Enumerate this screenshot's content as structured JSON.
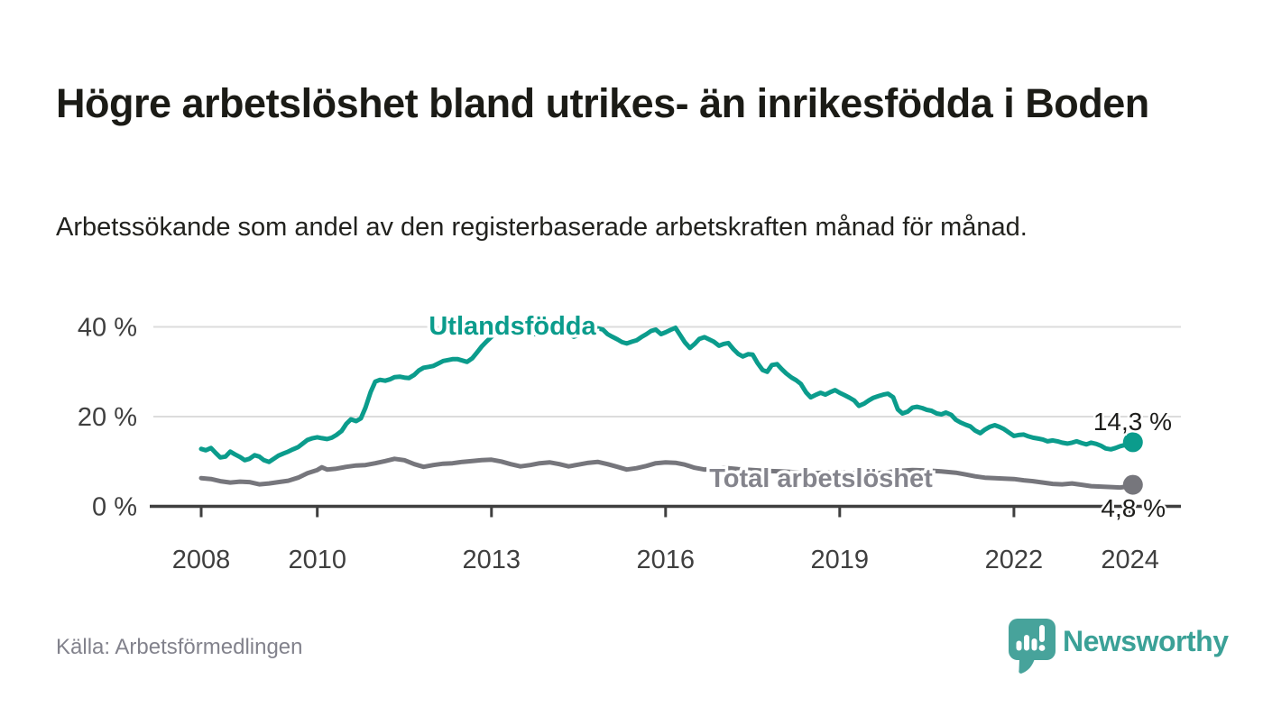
{
  "header": {
    "title": "Högre arbetslöshet bland utrikes- än inrikesfödda i Boden",
    "subtitle": "Arbetssökande som andel av den registerbaserade arbetskraften månad för månad."
  },
  "footer": {
    "source": "Källa: Arbetsförmedlingen",
    "brand": "Newsworthy"
  },
  "colors": {
    "accent_teal": "#0b9c8c",
    "total_gray": "#76767c",
    "total_label_gray": "#84848c",
    "axis_dark": "#3f3f3f",
    "gridline": "#dcdcdc",
    "value_label": "#1d1d1b",
    "brand_teal": "#3ba197",
    "white": "#ffffff"
  },
  "chart_data": {
    "type": "line",
    "title": "Arbetssökande som andel av den registerbaserade arbetskraften månad för månad",
    "unit": "%",
    "grid": true,
    "x_axis": {
      "range": [
        2007.15,
        2024.9
      ],
      "ticks": [
        2008,
        2010,
        2013,
        2016,
        2019,
        2022,
        2024
      ],
      "tick_labels": [
        "2008",
        "2010",
        "2013",
        "2016",
        "2019",
        "2022",
        "2024"
      ]
    },
    "y_axis": {
      "range": [
        0,
        42
      ],
      "ticks": [
        0,
        20,
        40
      ],
      "tick_labels": [
        "0 %",
        "20 %",
        "40 %"
      ]
    },
    "series": [
      {
        "name": "Total arbetslöshet",
        "color_key": "total_gray",
        "label_color_key": "total_label_gray",
        "end_value": 4.8,
        "end_label": "4,8 %",
        "points": [
          [
            2008.0,
            6.3
          ],
          [
            2008.17,
            6.1
          ],
          [
            2008.33,
            5.6
          ],
          [
            2008.5,
            5.3
          ],
          [
            2008.67,
            5.5
          ],
          [
            2008.83,
            5.4
          ],
          [
            2009.0,
            4.9
          ],
          [
            2009.17,
            5.1
          ],
          [
            2009.33,
            5.4
          ],
          [
            2009.5,
            5.7
          ],
          [
            2009.67,
            6.4
          ],
          [
            2009.83,
            7.4
          ],
          [
            2010.0,
            8.1
          ],
          [
            2010.08,
            8.7
          ],
          [
            2010.17,
            8.2
          ],
          [
            2010.33,
            8.4
          ],
          [
            2010.5,
            8.8
          ],
          [
            2010.67,
            9.1
          ],
          [
            2010.83,
            9.2
          ],
          [
            2011.0,
            9.6
          ],
          [
            2011.17,
            10.1
          ],
          [
            2011.33,
            10.6
          ],
          [
            2011.5,
            10.3
          ],
          [
            2011.67,
            9.4
          ],
          [
            2011.83,
            8.8
          ],
          [
            2012.0,
            9.2
          ],
          [
            2012.17,
            9.5
          ],
          [
            2012.33,
            9.6
          ],
          [
            2012.5,
            9.9
          ],
          [
            2012.67,
            10.1
          ],
          [
            2012.83,
            10.3
          ],
          [
            2013.0,
            10.4
          ],
          [
            2013.17,
            10.0
          ],
          [
            2013.33,
            9.4
          ],
          [
            2013.5,
            8.9
          ],
          [
            2013.67,
            9.2
          ],
          [
            2013.83,
            9.6
          ],
          [
            2014.0,
            9.8
          ],
          [
            2014.17,
            9.4
          ],
          [
            2014.33,
            8.9
          ],
          [
            2014.5,
            9.3
          ],
          [
            2014.67,
            9.7
          ],
          [
            2014.83,
            9.9
          ],
          [
            2015.0,
            9.4
          ],
          [
            2015.17,
            8.8
          ],
          [
            2015.33,
            8.2
          ],
          [
            2015.5,
            8.5
          ],
          [
            2015.67,
            9.0
          ],
          [
            2015.83,
            9.6
          ],
          [
            2016.0,
            9.8
          ],
          [
            2016.17,
            9.7
          ],
          [
            2016.33,
            9.3
          ],
          [
            2016.5,
            8.6
          ],
          [
            2016.67,
            8.2
          ],
          [
            2016.83,
            8.4
          ],
          [
            2017.0,
            8.6
          ],
          [
            2017.25,
            8.3
          ],
          [
            2017.5,
            8.1
          ],
          [
            2017.75,
            7.9
          ],
          [
            2018.0,
            7.8
          ],
          [
            2018.25,
            7.6
          ],
          [
            2018.5,
            7.4
          ],
          [
            2018.75,
            7.5
          ],
          [
            2019.0,
            7.6
          ],
          [
            2019.25,
            7.4
          ],
          [
            2019.5,
            7.3
          ],
          [
            2019.75,
            7.5
          ],
          [
            2020.0,
            7.9
          ],
          [
            2020.25,
            8.1
          ],
          [
            2020.5,
            8.0
          ],
          [
            2020.75,
            7.8
          ],
          [
            2021.0,
            7.5
          ],
          [
            2021.17,
            7.1
          ],
          [
            2021.33,
            6.7
          ],
          [
            2021.5,
            6.4
          ],
          [
            2021.67,
            6.3
          ],
          [
            2021.83,
            6.2
          ],
          [
            2022.0,
            6.1
          ],
          [
            2022.17,
            5.8
          ],
          [
            2022.33,
            5.6
          ],
          [
            2022.5,
            5.3
          ],
          [
            2022.67,
            5.0
          ],
          [
            2022.83,
            4.9
          ],
          [
            2023.0,
            5.1
          ],
          [
            2023.17,
            4.8
          ],
          [
            2023.33,
            4.5
          ],
          [
            2023.5,
            4.4
          ],
          [
            2023.67,
            4.3
          ],
          [
            2023.83,
            4.2
          ],
          [
            2024.0,
            4.5
          ],
          [
            2024.05,
            4.8
          ]
        ]
      },
      {
        "name": "Utlandsfödda",
        "color_key": "accent_teal",
        "label_color_key": "accent_teal",
        "end_value": 14.3,
        "end_label": "14,3 %",
        "points": [
          [
            2008.0,
            12.8
          ],
          [
            2008.08,
            12.5
          ],
          [
            2008.17,
            13.0
          ],
          [
            2008.25,
            11.9
          ],
          [
            2008.33,
            10.9
          ],
          [
            2008.42,
            11.1
          ],
          [
            2008.5,
            12.2
          ],
          [
            2008.58,
            11.6
          ],
          [
            2008.67,
            11.0
          ],
          [
            2008.75,
            10.3
          ],
          [
            2008.83,
            10.6
          ],
          [
            2008.92,
            11.4
          ],
          [
            2009.0,
            11.1
          ],
          [
            2009.08,
            10.3
          ],
          [
            2009.17,
            9.9
          ],
          [
            2009.25,
            10.6
          ],
          [
            2009.33,
            11.3
          ],
          [
            2009.42,
            11.8
          ],
          [
            2009.5,
            12.2
          ],
          [
            2009.58,
            12.7
          ],
          [
            2009.67,
            13.2
          ],
          [
            2009.75,
            14.0
          ],
          [
            2009.83,
            14.8
          ],
          [
            2009.92,
            15.2
          ],
          [
            2010.0,
            15.4
          ],
          [
            2010.08,
            15.2
          ],
          [
            2010.17,
            15.0
          ],
          [
            2010.25,
            15.3
          ],
          [
            2010.33,
            15.9
          ],
          [
            2010.42,
            16.8
          ],
          [
            2010.5,
            18.4
          ],
          [
            2010.58,
            19.4
          ],
          [
            2010.67,
            19.0
          ],
          [
            2010.75,
            19.6
          ],
          [
            2010.83,
            22.0
          ],
          [
            2010.92,
            25.5
          ],
          [
            2011.0,
            27.8
          ],
          [
            2011.08,
            28.2
          ],
          [
            2011.17,
            28.0
          ],
          [
            2011.25,
            28.3
          ],
          [
            2011.33,
            28.8
          ],
          [
            2011.42,
            28.9
          ],
          [
            2011.5,
            28.7
          ],
          [
            2011.58,
            28.6
          ],
          [
            2011.67,
            29.3
          ],
          [
            2011.75,
            30.3
          ],
          [
            2011.83,
            30.9
          ],
          [
            2011.92,
            31.1
          ],
          [
            2012.0,
            31.3
          ],
          [
            2012.08,
            31.8
          ],
          [
            2012.17,
            32.4
          ],
          [
            2012.25,
            32.6
          ],
          [
            2012.33,
            32.8
          ],
          [
            2012.42,
            32.8
          ],
          [
            2012.5,
            32.5
          ],
          [
            2012.58,
            32.2
          ],
          [
            2012.67,
            33.0
          ],
          [
            2012.75,
            34.3
          ],
          [
            2012.83,
            35.6
          ],
          [
            2012.92,
            36.8
          ],
          [
            2013.0,
            37.8
          ],
          [
            2013.08,
            38.5
          ],
          [
            2013.17,
            39.0
          ],
          [
            2013.25,
            39.4
          ],
          [
            2013.33,
            39.7
          ],
          [
            2013.42,
            39.9
          ],
          [
            2013.5,
            39.8
          ],
          [
            2013.58,
            39.3
          ],
          [
            2013.67,
            38.8
          ],
          [
            2013.75,
            38.4
          ],
          [
            2013.83,
            38.3
          ],
          [
            2013.92,
            38.5
          ],
          [
            2014.0,
            38.8
          ],
          [
            2014.08,
            39.1
          ],
          [
            2014.17,
            39.3
          ],
          [
            2014.25,
            39.1
          ],
          [
            2014.33,
            38.4
          ],
          [
            2014.42,
            37.8
          ],
          [
            2014.5,
            38.2
          ],
          [
            2014.58,
            38.8
          ],
          [
            2014.67,
            39.2
          ],
          [
            2014.75,
            39.5
          ],
          [
            2014.83,
            39.7
          ],
          [
            2014.92,
            39.4
          ],
          [
            2015.0,
            38.4
          ],
          [
            2015.08,
            37.8
          ],
          [
            2015.17,
            37.2
          ],
          [
            2015.25,
            36.6
          ],
          [
            2015.33,
            36.3
          ],
          [
            2015.42,
            36.7
          ],
          [
            2015.5,
            37.0
          ],
          [
            2015.58,
            37.7
          ],
          [
            2015.67,
            38.4
          ],
          [
            2015.75,
            39.1
          ],
          [
            2015.83,
            39.4
          ],
          [
            2015.92,
            38.4
          ],
          [
            2016.0,
            38.8
          ],
          [
            2016.08,
            39.3
          ],
          [
            2016.17,
            39.8
          ],
          [
            2016.25,
            38.2
          ],
          [
            2016.33,
            36.6
          ],
          [
            2016.42,
            35.3
          ],
          [
            2016.5,
            36.2
          ],
          [
            2016.58,
            37.3
          ],
          [
            2016.67,
            37.7
          ],
          [
            2016.75,
            37.2
          ],
          [
            2016.83,
            36.7
          ],
          [
            2016.92,
            35.8
          ],
          [
            2017.0,
            36.2
          ],
          [
            2017.08,
            36.4
          ],
          [
            2017.17,
            35.0
          ],
          [
            2017.25,
            34.0
          ],
          [
            2017.33,
            33.4
          ],
          [
            2017.42,
            33.9
          ],
          [
            2017.5,
            33.8
          ],
          [
            2017.58,
            32.0
          ],
          [
            2017.67,
            30.4
          ],
          [
            2017.75,
            30.0
          ],
          [
            2017.83,
            31.5
          ],
          [
            2017.92,
            31.7
          ],
          [
            2018.0,
            30.6
          ],
          [
            2018.08,
            29.6
          ],
          [
            2018.17,
            28.7
          ],
          [
            2018.25,
            28.1
          ],
          [
            2018.33,
            27.3
          ],
          [
            2018.42,
            25.4
          ],
          [
            2018.5,
            24.3
          ],
          [
            2018.58,
            24.8
          ],
          [
            2018.67,
            25.3
          ],
          [
            2018.75,
            24.9
          ],
          [
            2018.83,
            25.4
          ],
          [
            2018.92,
            25.9
          ],
          [
            2019.0,
            25.3
          ],
          [
            2019.08,
            24.8
          ],
          [
            2019.17,
            24.2
          ],
          [
            2019.25,
            23.6
          ],
          [
            2019.33,
            22.4
          ],
          [
            2019.42,
            22.9
          ],
          [
            2019.5,
            23.6
          ],
          [
            2019.58,
            24.2
          ],
          [
            2019.67,
            24.6
          ],
          [
            2019.75,
            24.9
          ],
          [
            2019.83,
            25.1
          ],
          [
            2019.92,
            24.3
          ],
          [
            2020.0,
            21.6
          ],
          [
            2020.08,
            20.7
          ],
          [
            2020.17,
            21.1
          ],
          [
            2020.25,
            22.0
          ],
          [
            2020.33,
            22.2
          ],
          [
            2020.42,
            21.9
          ],
          [
            2020.5,
            21.5
          ],
          [
            2020.58,
            21.3
          ],
          [
            2020.67,
            20.7
          ],
          [
            2020.75,
            20.5
          ],
          [
            2020.83,
            20.9
          ],
          [
            2020.92,
            20.4
          ],
          [
            2021.0,
            19.3
          ],
          [
            2021.08,
            18.7
          ],
          [
            2021.17,
            18.2
          ],
          [
            2021.25,
            17.8
          ],
          [
            2021.33,
            16.9
          ],
          [
            2021.42,
            16.3
          ],
          [
            2021.5,
            17.1
          ],
          [
            2021.58,
            17.7
          ],
          [
            2021.67,
            18.1
          ],
          [
            2021.75,
            17.7
          ],
          [
            2021.83,
            17.2
          ],
          [
            2021.92,
            16.4
          ],
          [
            2022.0,
            15.7
          ],
          [
            2022.08,
            15.9
          ],
          [
            2022.17,
            16.0
          ],
          [
            2022.25,
            15.6
          ],
          [
            2022.33,
            15.3
          ],
          [
            2022.42,
            15.1
          ],
          [
            2022.5,
            14.9
          ],
          [
            2022.58,
            14.5
          ],
          [
            2022.67,
            14.7
          ],
          [
            2022.75,
            14.5
          ],
          [
            2022.83,
            14.2
          ],
          [
            2022.92,
            14.0
          ],
          [
            2023.0,
            14.2
          ],
          [
            2023.08,
            14.5
          ],
          [
            2023.17,
            14.1
          ],
          [
            2023.25,
            13.8
          ],
          [
            2023.33,
            14.2
          ],
          [
            2023.42,
            13.9
          ],
          [
            2023.5,
            13.5
          ],
          [
            2023.58,
            12.9
          ],
          [
            2023.67,
            12.7
          ],
          [
            2023.75,
            13.0
          ],
          [
            2023.83,
            13.4
          ],
          [
            2023.92,
            13.7
          ],
          [
            2024.0,
            14.1
          ],
          [
            2024.05,
            14.3
          ]
        ]
      }
    ],
    "legend_position": "inline-labels"
  }
}
